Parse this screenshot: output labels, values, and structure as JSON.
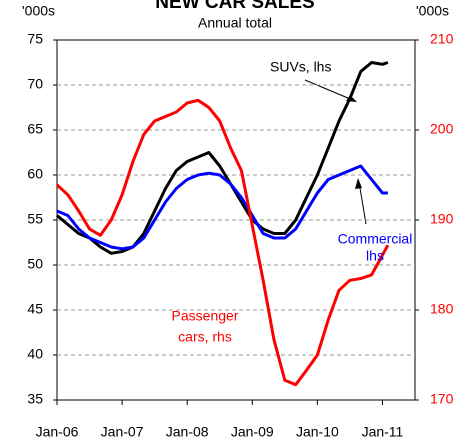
{
  "chart_data": {
    "type": "line",
    "title": "NEW CAR SALES",
    "subtitle": "Annual total",
    "y_unit": "'000s",
    "y2_unit": "'000s",
    "x": [
      2006,
      2006.167,
      2006.333,
      2006.5,
      2006.667,
      2006.833,
      2007,
      2007.167,
      2007.333,
      2007.5,
      2007.667,
      2007.833,
      2008,
      2008.167,
      2008.333,
      2008.5,
      2008.667,
      2008.833,
      2009,
      2009.167,
      2009.333,
      2009.5,
      2009.667,
      2009.833,
      2010,
      2010.167,
      2010.333,
      2010.5,
      2010.667,
      2010.833,
      2011,
      2011.083
    ],
    "xlim": [
      2006,
      2011.5
    ],
    "xticks": [
      {
        "value": 2006,
        "label": "Jan-06"
      },
      {
        "value": 2007,
        "label": "Jan-07"
      },
      {
        "value": 2008,
        "label": "Jan-08"
      },
      {
        "value": 2009,
        "label": "Jan-09"
      },
      {
        "value": 2010,
        "label": "Jan-10"
      },
      {
        "value": 2011,
        "label": "Jan-11"
      }
    ],
    "ylim": [
      35,
      75
    ],
    "yticks": [
      35,
      40,
      45,
      50,
      55,
      60,
      65,
      70,
      75
    ],
    "y2lim": [
      170,
      210
    ],
    "y2ticks": [
      170,
      180,
      190,
      200,
      210
    ],
    "y2_color": "#ff0000",
    "grid": true,
    "series": [
      {
        "name": "SUVs, lhs",
        "color": "#000000",
        "axis": "y",
        "values": [
          55.5,
          54.5,
          53.5,
          53,
          52,
          51.3,
          51.5,
          52,
          53.5,
          56,
          58.5,
          60.5,
          61.5,
          62,
          62.5,
          61,
          59,
          57,
          55,
          54,
          53.5,
          53.5,
          55,
          57.5,
          60,
          63,
          66,
          68.5,
          71.5,
          72.5,
          72.3,
          72.5
        ]
      },
      {
        "name": "Commercial lhs",
        "color": "#0000ff",
        "axis": "y",
        "values": [
          56,
          55.5,
          54,
          53,
          52.5,
          52,
          51.8,
          52,
          53,
          55,
          57,
          58.5,
          59.5,
          60,
          60.2,
          60,
          59,
          57.5,
          55.5,
          53.5,
          53,
          53,
          54,
          56,
          58,
          59.5,
          60,
          60.5,
          61,
          59.5,
          58,
          58
        ]
      },
      {
        "name": "Passenger cars, rhs",
        "color": "#ff0000",
        "axis": "y2",
        "values": [
          193.9,
          192.8,
          191,
          189,
          188.3,
          190,
          192.8,
          196.5,
          199.5,
          201,
          201.5,
          202,
          203,
          203.3,
          202.5,
          201,
          198,
          195.5,
          189.4,
          183.3,
          176.7,
          172.2,
          171.7,
          173.3,
          175,
          178.9,
          182.2,
          183.3,
          183.5,
          183.9,
          186.1,
          187.2
        ]
      }
    ]
  }
}
